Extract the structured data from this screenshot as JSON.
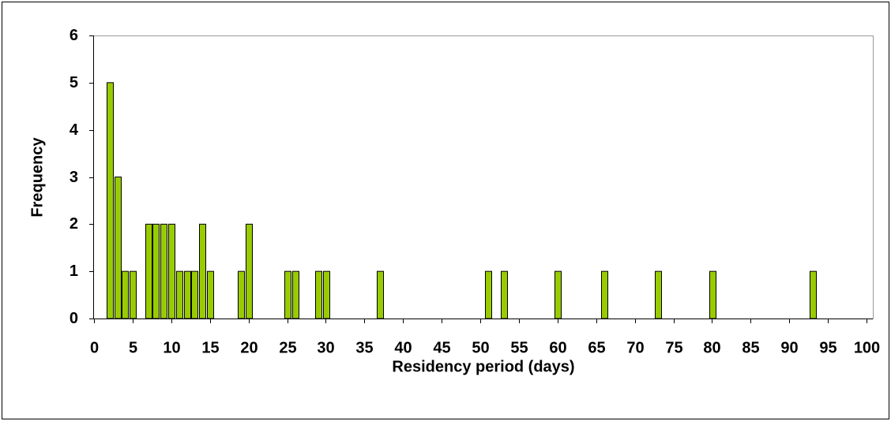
{
  "chart_data": {
    "type": "bar",
    "x_label": "Residency period (days)",
    "y_label": "Frequency",
    "x": [
      1,
      2,
      3,
      4,
      6,
      7,
      8,
      9,
      10,
      11,
      12,
      13,
      14,
      18,
      19,
      24,
      25,
      28,
      29,
      36,
      50,
      52,
      59,
      65,
      72,
      79,
      92
    ],
    "values": [
      5,
      3,
      1,
      1,
      2,
      2,
      2,
      2,
      1,
      1,
      1,
      2,
      1,
      1,
      2,
      1,
      1,
      1,
      1,
      1,
      1,
      1,
      1,
      1,
      1,
      1,
      1
    ],
    "color": "#99cc00",
    "xlim": [
      0,
      100
    ],
    "xticks": [
      0,
      5,
      10,
      15,
      20,
      25,
      30,
      35,
      40,
      45,
      50,
      55,
      60,
      65,
      70,
      75,
      80,
      85,
      90,
      95,
      100
    ],
    "ylim": [
      0,
      6
    ],
    "yticks": [
      0,
      1,
      2,
      3,
      4,
      5,
      6
    ],
    "grid": false
  }
}
